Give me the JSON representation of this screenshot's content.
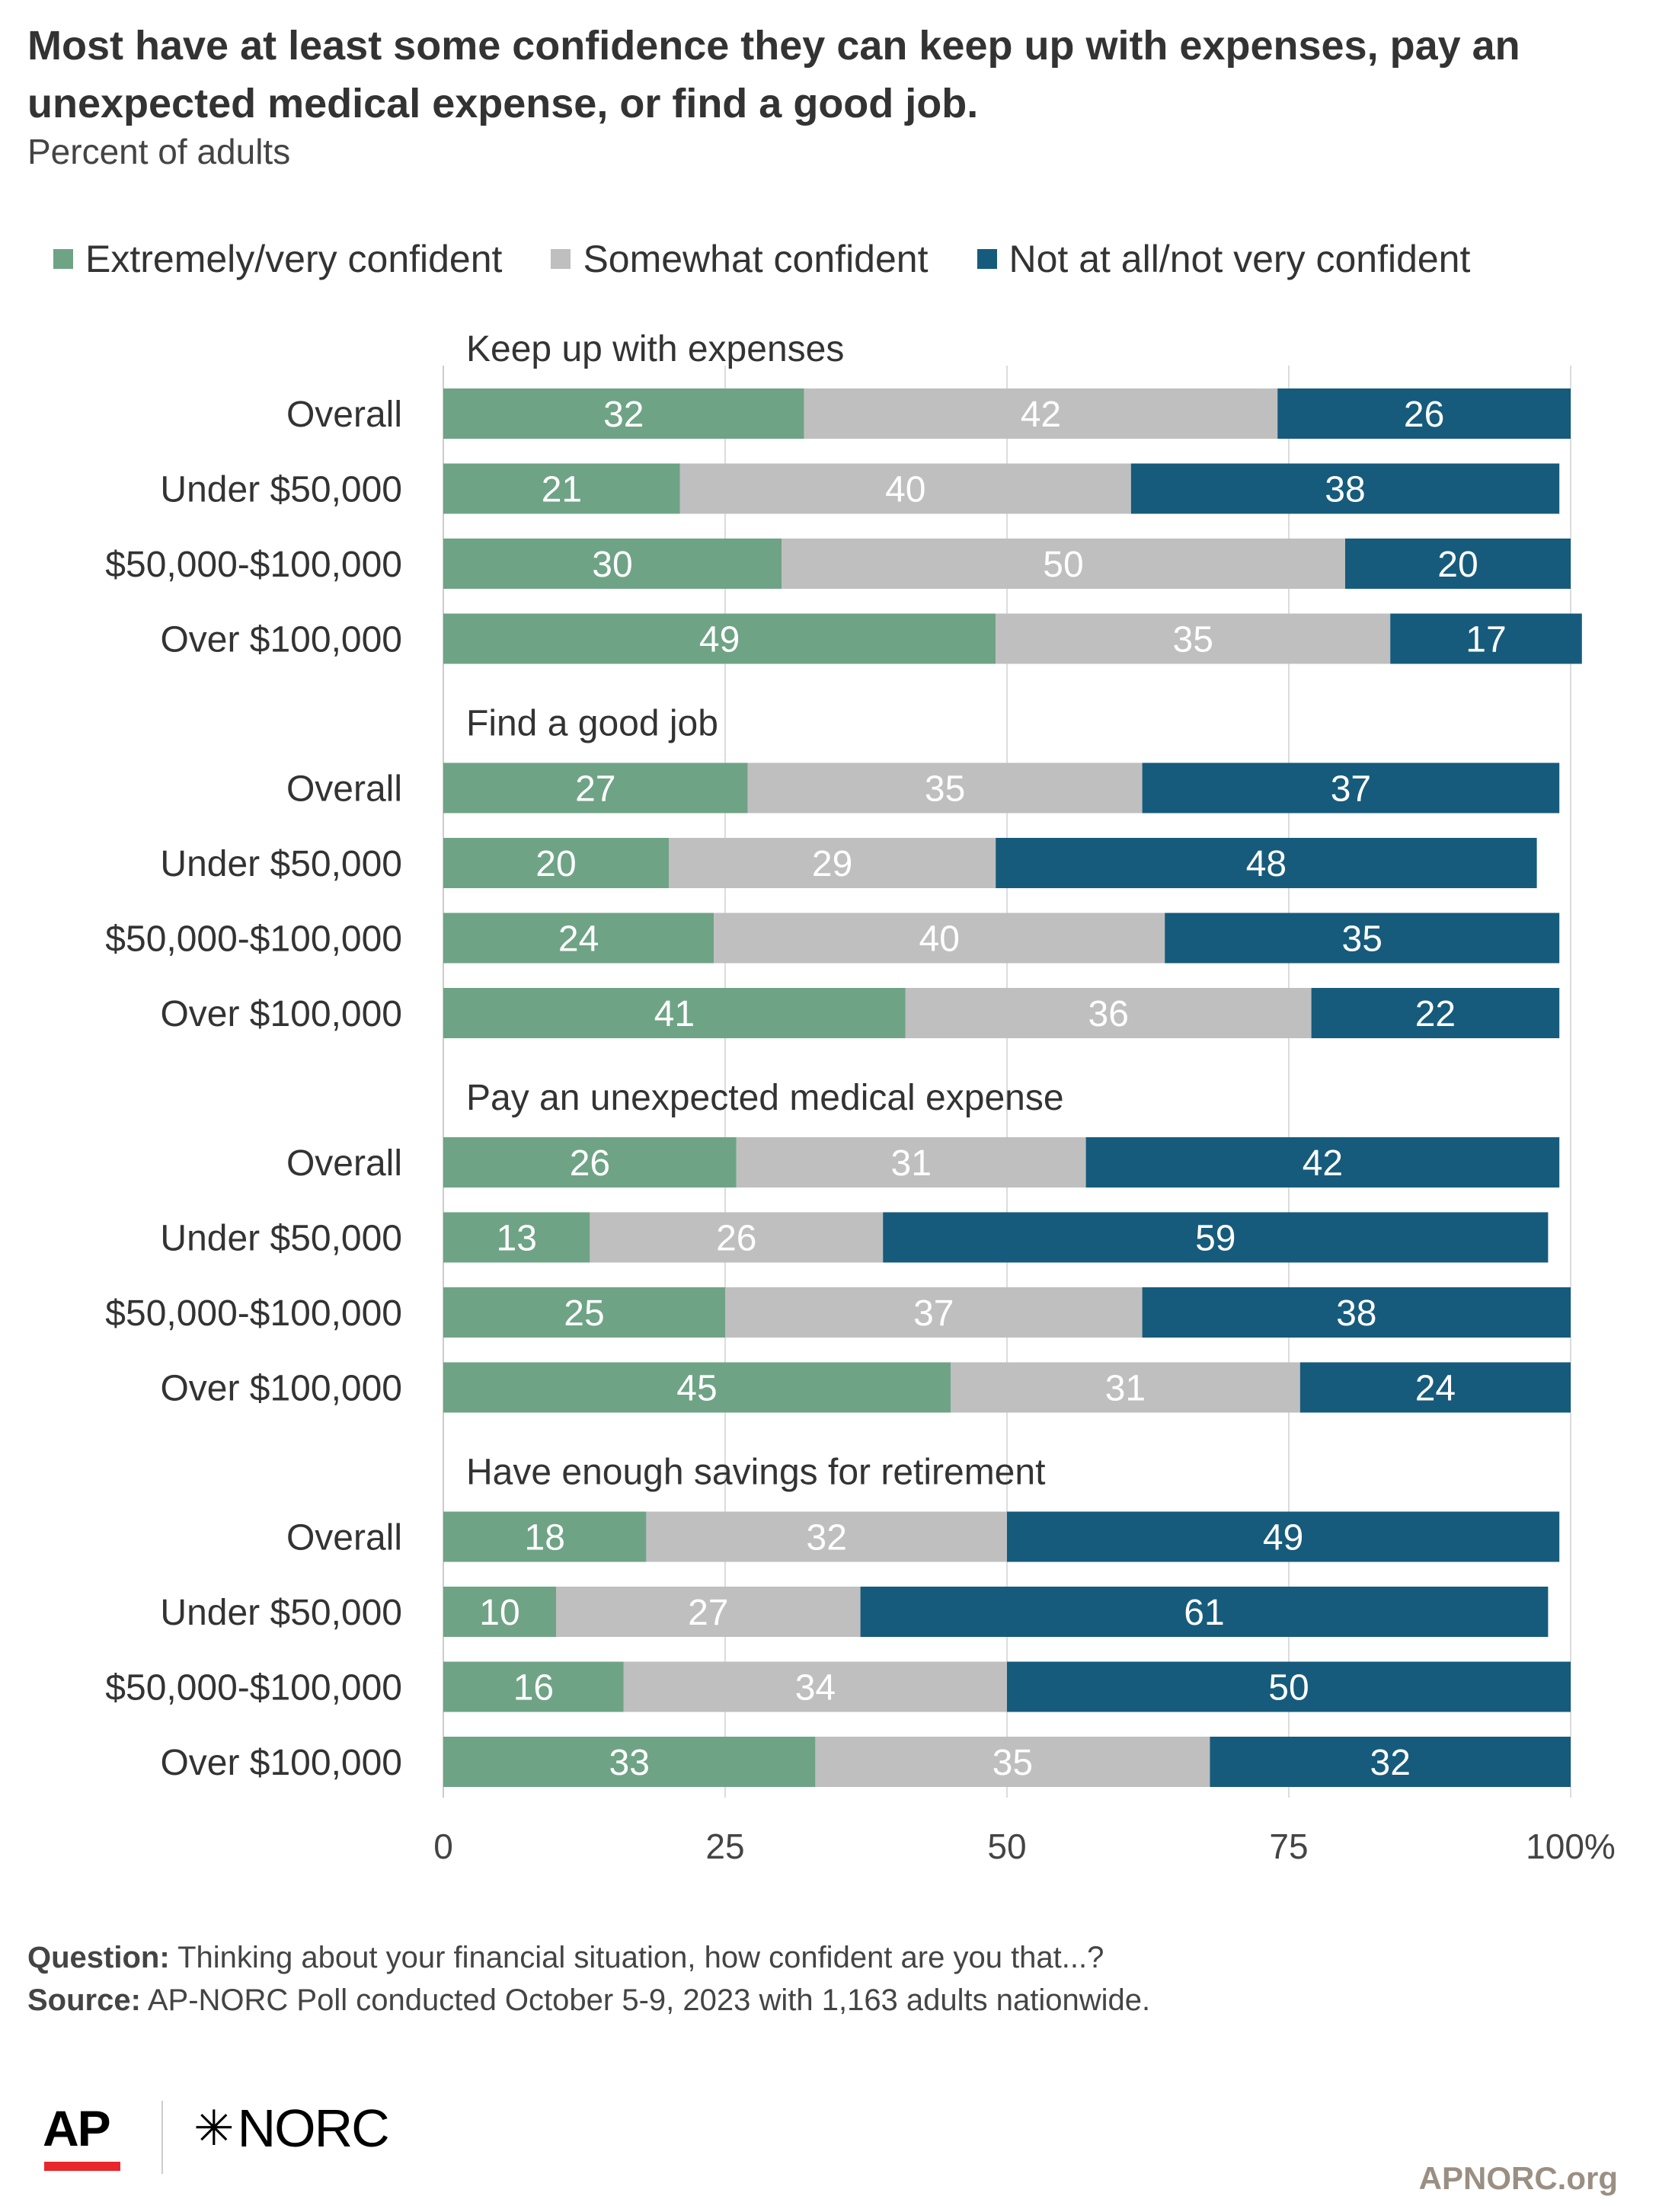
{
  "header": {
    "title": "Most have at least some confidence they can keep up with expenses, pay an unexpected medical expense, or find a good job.",
    "subtitle": "Percent of adults"
  },
  "legend": [
    {
      "label": "Extremely/very confident",
      "color": "#6fa386"
    },
    {
      "label": "Somewhat confident",
      "color": "#bfbfbf"
    },
    {
      "label": "Not at all/not very confident",
      "color": "#165b7c"
    }
  ],
  "chart_data": {
    "type": "bar",
    "orientation": "horizontal",
    "stacked": true,
    "xlim": [
      0,
      100
    ],
    "x_ticks": [
      "0",
      "25",
      "50",
      "75",
      "100%"
    ],
    "grid": true,
    "legend_position": "top",
    "series": [
      {
        "name": "Extremely/very confident",
        "color": "#6fa386",
        "label_color": "#ffffff"
      },
      {
        "name": "Somewhat confident",
        "color": "#bfbfbf",
        "label_color": "#ffffff"
      },
      {
        "name": "Not at all/not very confident",
        "color": "#165b7c",
        "label_color": "#ffffff"
      }
    ],
    "groups": [
      {
        "title": "Keep up with expenses",
        "rows": [
          {
            "label": "Overall",
            "values": [
              32,
              42,
              26
            ]
          },
          {
            "label": "Under $50,000",
            "values": [
              21,
              40,
              38
            ]
          },
          {
            "label": "$50,000-$100,000",
            "values": [
              30,
              50,
              20
            ]
          },
          {
            "label": "Over $100,000",
            "values": [
              49,
              35,
              17
            ]
          }
        ]
      },
      {
        "title": "Find a good job",
        "rows": [
          {
            "label": "Overall",
            "values": [
              27,
              35,
              37
            ]
          },
          {
            "label": "Under $50,000",
            "values": [
              20,
              29,
              48
            ]
          },
          {
            "label": "$50,000-$100,000",
            "values": [
              24,
              40,
              35
            ]
          },
          {
            "label": "Over $100,000",
            "values": [
              41,
              36,
              22
            ]
          }
        ]
      },
      {
        "title": "Pay an unexpected medical expense",
        "rows": [
          {
            "label": "Overall",
            "values": [
              26,
              31,
              42
            ]
          },
          {
            "label": "Under $50,000",
            "values": [
              13,
              26,
              59
            ]
          },
          {
            "label": "$50,000-$100,000",
            "values": [
              25,
              37,
              38
            ]
          },
          {
            "label": "Over $100,000",
            "values": [
              45,
              31,
              24
            ]
          }
        ]
      },
      {
        "title": "Have enough savings for retirement",
        "rows": [
          {
            "label": "Overall",
            "values": [
              18,
              32,
              49
            ]
          },
          {
            "label": "Under $50,000",
            "values": [
              10,
              27,
              61
            ]
          },
          {
            "label": "$50,000-$100,000",
            "values": [
              16,
              34,
              50
            ]
          },
          {
            "label": "Over $100,000",
            "values": [
              33,
              35,
              32
            ]
          }
        ]
      }
    ]
  },
  "footer": {
    "question_label": "Question:",
    "question_text": " Thinking about your financial situation, how confident are you that...?",
    "source_label": "Source:",
    "source_text": " AP-NORC Poll conducted October 5-9, 2023 with 1,163 adults nationwide.",
    "ap_logo": "AP",
    "norc_logo": "NORC",
    "site": "APNORC.org"
  }
}
